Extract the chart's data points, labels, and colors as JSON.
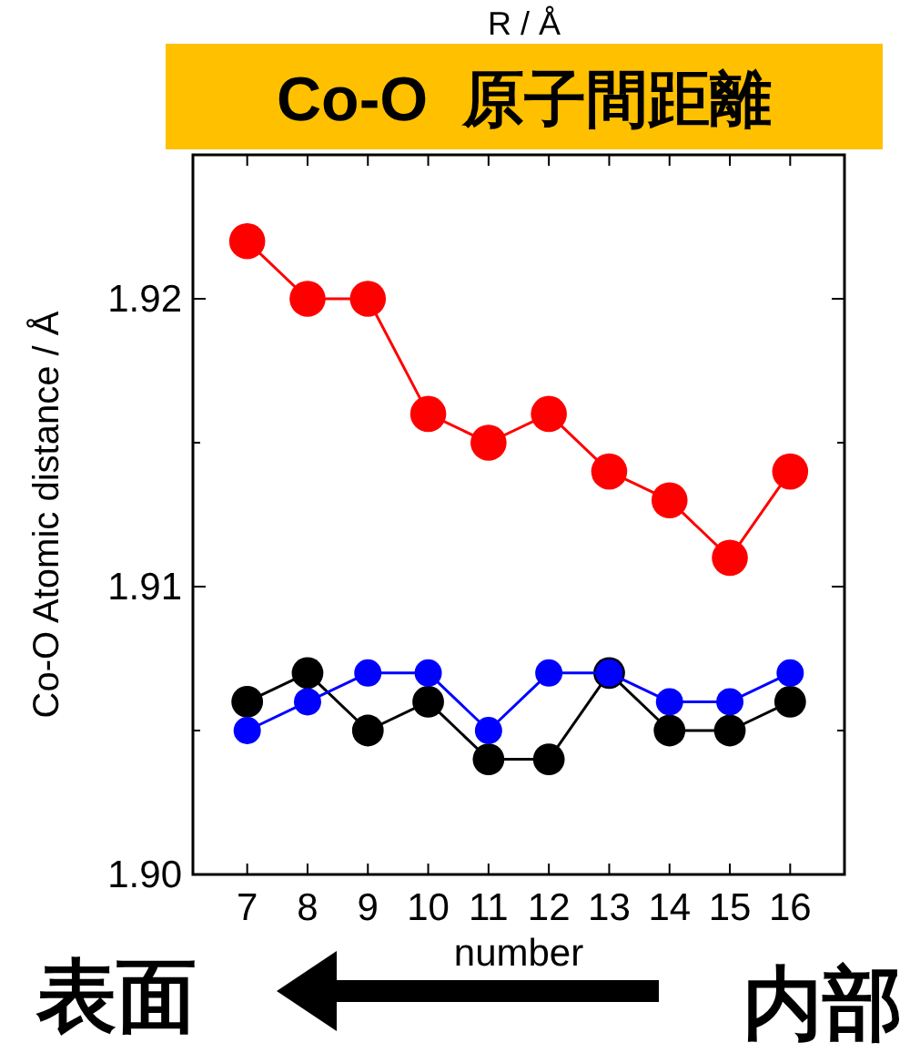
{
  "chart_data": {
    "type": "line",
    "title": "Co-O  原子間距離",
    "xlabel": "number",
    "ylabel": "Co-O Atomic distance / Å",
    "annotations": [
      "R / Å",
      "表面",
      "内部"
    ],
    "x": [
      7,
      8,
      9,
      10,
      11,
      12,
      13,
      14,
      15,
      16
    ],
    "series": [
      {
        "color": "#ff0000",
        "values": [
          1.922,
          1.92,
          1.92,
          1.916,
          1.915,
          1.916,
          1.914,
          1.913,
          1.911,
          1.914
        ]
      },
      {
        "color": "#000000",
        "values": [
          1.906,
          1.907,
          1.905,
          1.906,
          1.904,
          1.904,
          1.907,
          1.905,
          1.905,
          1.906
        ]
      },
      {
        "color": "#0000ff",
        "values": [
          1.905,
          1.906,
          1.907,
          1.907,
          1.905,
          1.907,
          1.907,
          1.906,
          1.906,
          1.907
        ]
      }
    ],
    "xlim": [
      6.1,
      16.9
    ],
    "ylim": [
      1.9,
      1.925
    ],
    "xticks": [
      7,
      8,
      9,
      10,
      11,
      12,
      13,
      14,
      15,
      16
    ],
    "yticks": [
      {
        "value": 1.9,
        "label": "1.90"
      },
      {
        "value": 1.905,
        "label": null
      },
      {
        "value": 1.91,
        "label": "1.91"
      },
      {
        "value": 1.915,
        "label": null
      },
      {
        "value": 1.92,
        "label": "1.92"
      }
    ],
    "marker": "circle",
    "line_style": "solid",
    "grid": false
  }
}
